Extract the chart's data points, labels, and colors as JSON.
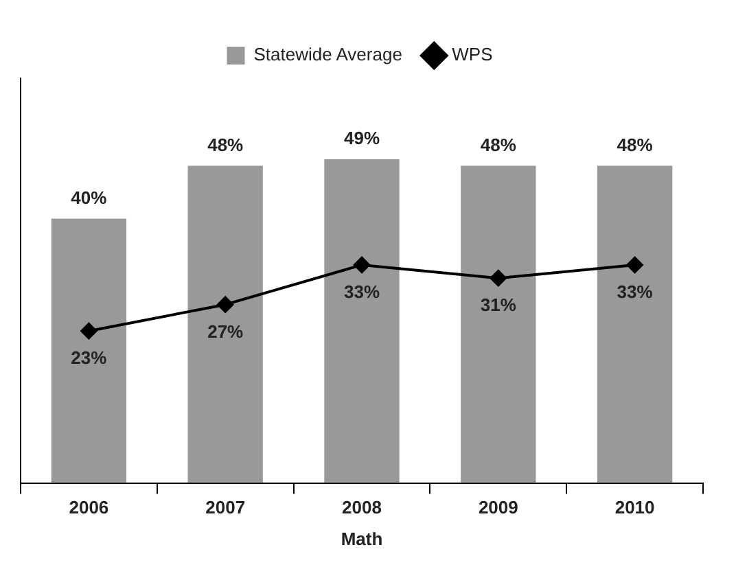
{
  "chart_data": {
    "type": "bar",
    "xlabel": "Math",
    "categories": [
      "2006",
      "2007",
      "2008",
      "2009",
      "2010"
    ],
    "series": [
      {
        "name": "Statewide Average",
        "color": "#999999",
        "values": [
          40,
          48,
          49,
          48,
          48
        ],
        "value_labels": [
          "40%",
          "48%",
          "49%",
          "48%",
          "48%"
        ]
      },
      {
        "name": "WPS",
        "type": "line",
        "color": "#000000",
        "values": [
          23,
          27,
          33,
          31,
          33
        ],
        "value_labels": [
          "23%",
          "27%",
          "33%",
          "31%",
          "33%"
        ]
      }
    ],
    "legend": "top",
    "marker": "diamond",
    "line_style": "solid",
    "grid": false,
    "tick_labels": "x"
  }
}
